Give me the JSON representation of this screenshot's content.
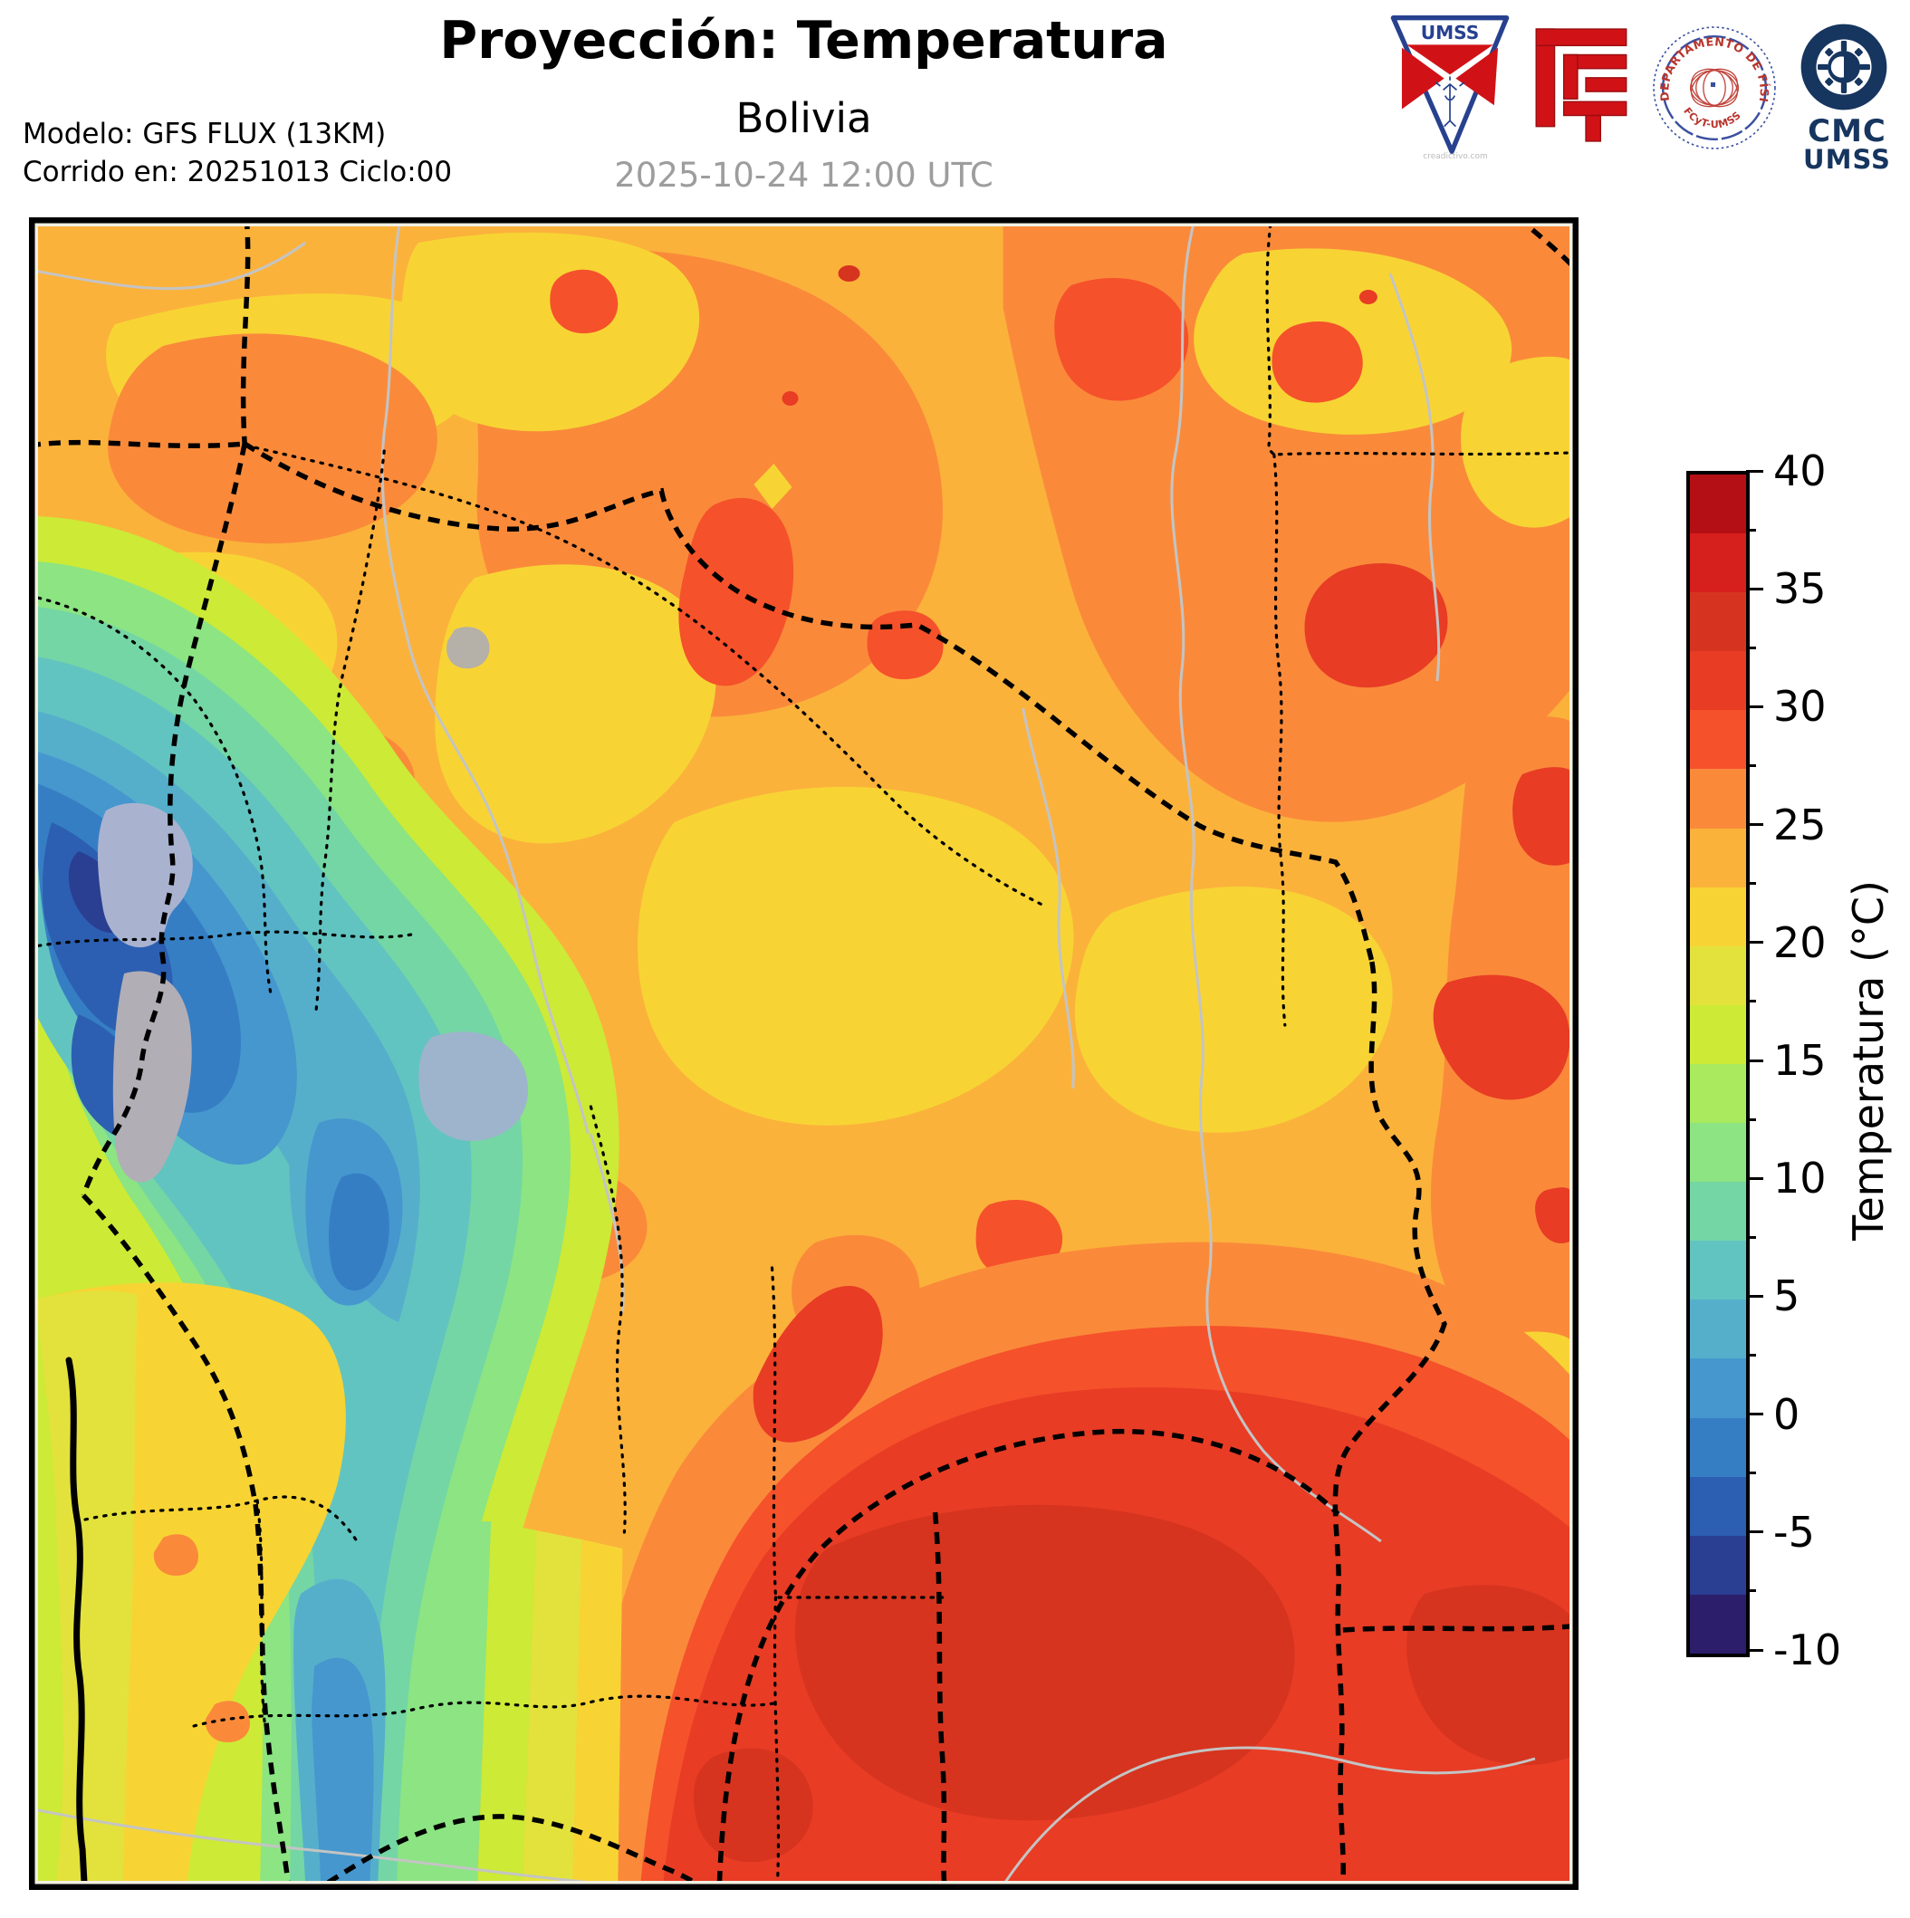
{
  "header": {
    "title": "Proyección: Temperatura",
    "subtitle": "Bolivia",
    "datetime": "2025-10-24 12:00 UTC",
    "model_line1": "Modelo: GFS FLUX (13KM)",
    "model_line2": "Corrido en: 20251013 Ciclo:00"
  },
  "logos": {
    "pennant_text": "UMSS",
    "pennant_watermark": "creadictivo.com",
    "seal_text_top": "DEPARTAMENTO DE FÍSICA",
    "seal_text_bottom": "FCyT-UMSS",
    "cmc_line1": "CMC",
    "cmc_line2": "UMSS",
    "navy": "#16355f",
    "red": "#d01217",
    "seal_blue": "#3a4fa0",
    "seal_red": "#b8352c"
  },
  "colorbar": {
    "label": "Temperatura (°C)",
    "unit": "°C",
    "min": -10,
    "max": 40,
    "major_tick_step": 5,
    "band_step": 2.5,
    "ticks": [
      40,
      35,
      30,
      25,
      20,
      15,
      10,
      5,
      0,
      -5,
      -10
    ],
    "colors_top_to_bottom": [
      "#b40f14",
      "#d6201e",
      "#d63420",
      "#e83c25",
      "#f5512b",
      "#fa8a3a",
      "#fbb23b",
      "#f7d434",
      "#e3e23c",
      "#cdea36",
      "#a9ea5e",
      "#8ce483",
      "#74d6a4",
      "#62c4c0",
      "#55afcb",
      "#4597ce",
      "#367ec4",
      "#2c5fb1",
      "#2a3e92",
      "#2c1e6a"
    ]
  },
  "map": {
    "region": "Bolivia",
    "variable": "Temperatura",
    "palette": {
      "base": "#fbb23b",
      "orange": "#fa8a3a",
      "orange_red": "#f5512b",
      "red": "#e83c25",
      "dark_red": "#d6341f",
      "yellow": "#f7d434",
      "yellow_green": "#e3e23c",
      "lime": "#cdea36",
      "light_green": "#a9ea5e",
      "green": "#8ce483",
      "teal_green": "#74d6a4",
      "teal": "#62c4c0",
      "light_blue": "#55afcb",
      "blue": "#4597ce",
      "deep_blue": "#367ec4",
      "dark_blue": "#2c5fb1",
      "navy": "#2a3e92",
      "lake": "#a9b3d0",
      "salt_flat": "#b2aeb6",
      "pale_slate": "#9eb4cc",
      "terrain_gray": "#b5b0a8",
      "river": "#c4c4c4",
      "border": "#000000",
      "margin": "#f2f0e1"
    }
  }
}
